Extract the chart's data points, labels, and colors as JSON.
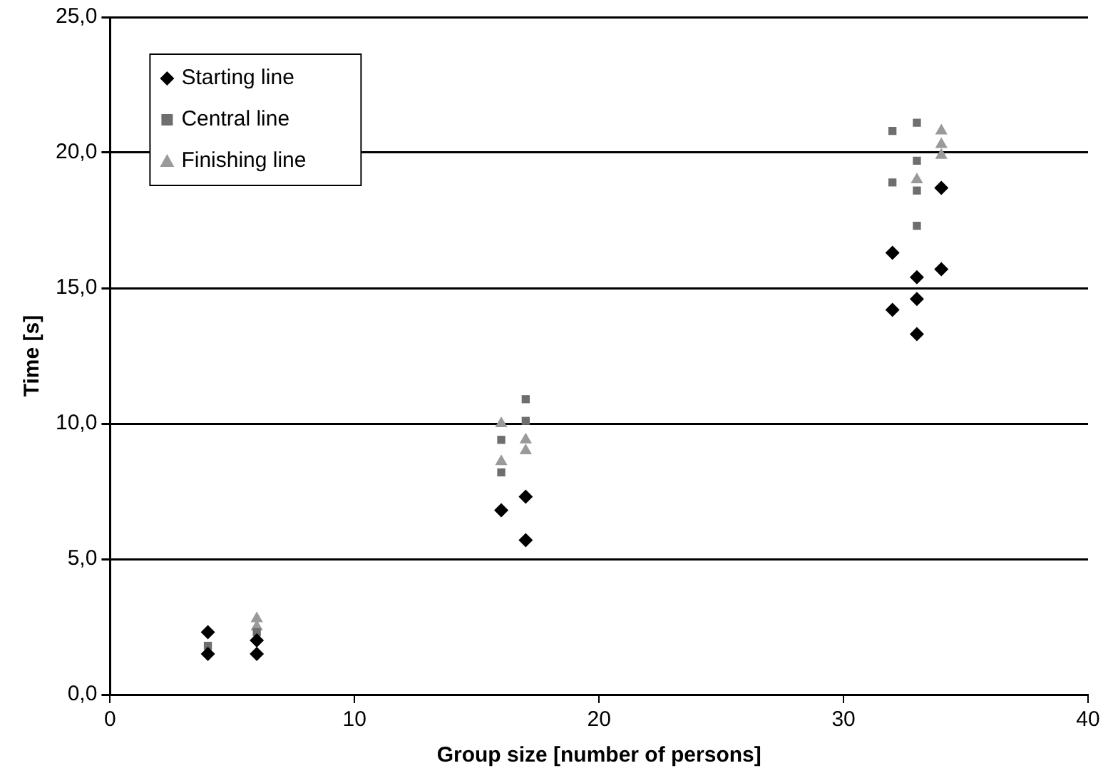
{
  "chart_data": {
    "type": "scatter",
    "xlabel": "Group size [number of persons]",
    "ylabel": "Time [s]",
    "xlim": [
      0,
      40
    ],
    "xticks": [
      0,
      10,
      20,
      30,
      40
    ],
    "ylim": [
      0,
      25
    ],
    "yticks": [
      {
        "value": 0,
        "label": "0,0"
      },
      {
        "value": 5,
        "label": "5,0"
      },
      {
        "value": 10,
        "label": "10,0"
      },
      {
        "value": 15,
        "label": "15,0"
      },
      {
        "value": 20,
        "label": "20,0"
      },
      {
        "value": 25,
        "label": "25,0"
      }
    ],
    "grid": "y",
    "legend": "top left",
    "series": [
      {
        "name": "Starting line",
        "color": "#000000",
        "marker": "diamond",
        "x": [
          4,
          4,
          6,
          6,
          16,
          17,
          17,
          34,
          32,
          34,
          33,
          33,
          32,
          33
        ],
        "values": [
          1.5,
          2.3,
          1.5,
          2.0,
          6.8,
          7.3,
          5.7,
          18.7,
          16.3,
          15.7,
          15.4,
          14.6,
          14.2,
          13.3
        ]
      },
      {
        "name": "Central line",
        "color": "#6e6e6e",
        "marker": "square",
        "x": [
          4,
          6,
          17,
          17,
          16,
          16,
          32,
          33,
          33,
          32,
          33,
          33
        ],
        "values": [
          1.8,
          2.3,
          10.9,
          10.1,
          9.4,
          8.2,
          20.8,
          21.1,
          19.7,
          18.9,
          18.6,
          17.3
        ]
      },
      {
        "name": "Finishing line",
        "color": "#9a9a9a",
        "marker": "triangle",
        "x": [
          6,
          6,
          16,
          16,
          17,
          17,
          34,
          34,
          34,
          33
        ],
        "values": [
          2.8,
          2.5,
          10.0,
          8.6,
          9.4,
          9.0,
          20.8,
          20.3,
          19.9,
          19.0
        ]
      }
    ]
  }
}
